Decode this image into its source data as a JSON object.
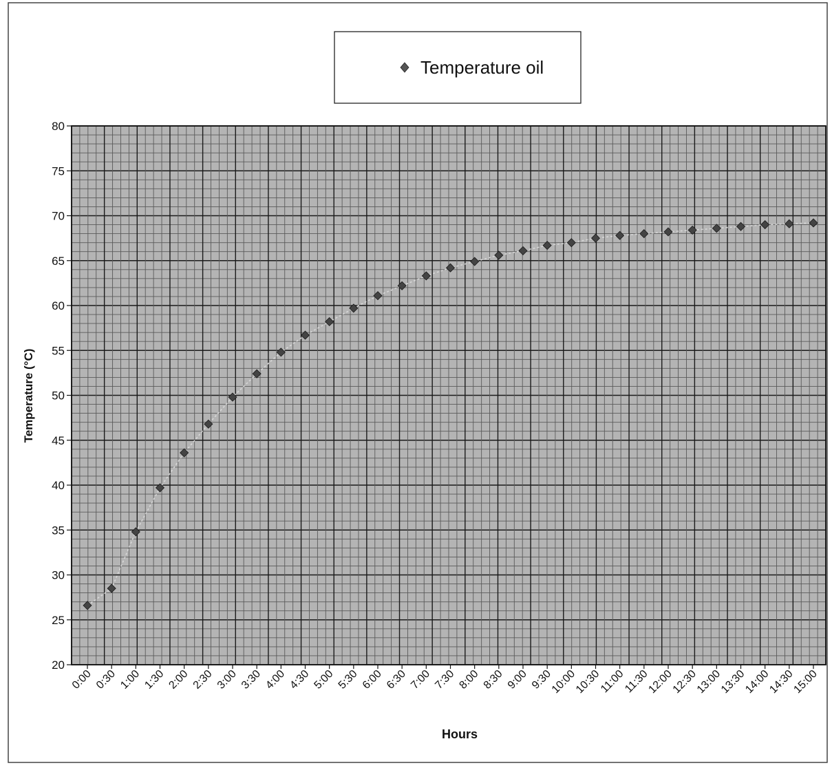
{
  "chart_data": {
    "type": "scatter",
    "title": "",
    "xlabel": "Hours",
    "ylabel": "Temperature (°C)",
    "ylim": [
      20,
      80
    ],
    "yticks": [
      20,
      25,
      30,
      35,
      40,
      45,
      50,
      55,
      60,
      65,
      70,
      75,
      80
    ],
    "categories": [
      "0:00",
      "0:30",
      "1:00",
      "1:30",
      "2:00",
      "2:30",
      "3:00",
      "3:30",
      "4:00",
      "4:30",
      "5:00",
      "5:30",
      "6:00",
      "6:30",
      "7:00",
      "7:30",
      "8:00",
      "8:30",
      "9:00",
      "9:30",
      "10:00",
      "10:30",
      "11:00",
      "11:30",
      "12:00",
      "12:30",
      "13:00",
      "13:30",
      "14:00",
      "14:30",
      "15:00"
    ],
    "series": [
      {
        "name": "Temperature oil",
        "marker": "diamond",
        "values": [
          26.6,
          28.5,
          34.8,
          39.7,
          43.6,
          46.8,
          49.8,
          52.4,
          54.8,
          56.7,
          58.2,
          59.7,
          61.1,
          62.2,
          63.3,
          64.2,
          64.9,
          65.6,
          66.1,
          66.7,
          67.0,
          67.5,
          67.8,
          68.0,
          68.2,
          68.4,
          68.6,
          68.8,
          69.0,
          69.1,
          69.2
        ]
      }
    ],
    "grid": true,
    "legend": "top-center",
    "colors": {
      "plot_background": "#b4b4b4",
      "grid_major": "#1a1a1a",
      "grid_minor": "#5a5a5a",
      "marker": "#444444",
      "trend_line": "#d8d8d8"
    }
  }
}
